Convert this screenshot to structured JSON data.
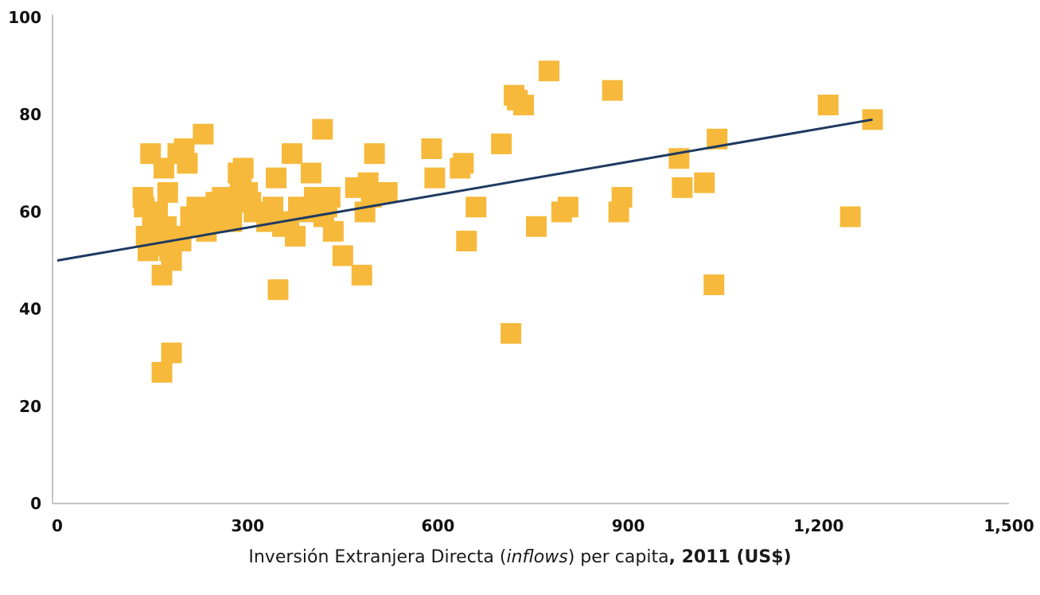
{
  "chart_data": {
    "type": "scatter",
    "title": "",
    "xlabel_parts": {
      "pre": "Inversión Extranjera Directa (",
      "italic": "inflows",
      "mid": ") per capita",
      "bold": ", 2011 (US$)"
    },
    "ylabel": "",
    "xlim": [
      0,
      1500
    ],
    "ylim": [
      0,
      100
    ],
    "x_ticks": [
      0,
      300,
      600,
      900,
      1200,
      1500
    ],
    "x_tick_labels": [
      "0",
      "300",
      "600",
      "900",
      "1,200",
      "1,500"
    ],
    "y_ticks": [
      0,
      20,
      40,
      60,
      80,
      100
    ],
    "y_tick_labels": [
      "0",
      "20",
      "40",
      "60",
      "80",
      "100"
    ],
    "grid": false,
    "legend": "none",
    "marker_color": "#F6B93B",
    "trend_color": "#1F3A60",
    "trendline": {
      "x": [
        0,
        1285
      ],
      "y": [
        50,
        79
      ]
    },
    "points": [
      [
        135,
        63
      ],
      [
        137,
        61
      ],
      [
        140,
        55
      ],
      [
        143,
        52
      ],
      [
        147,
        72
      ],
      [
        150,
        58
      ],
      [
        155,
        54
      ],
      [
        158,
        60
      ],
      [
        162,
        56
      ],
      [
        165,
        47
      ],
      [
        168,
        69
      ],
      [
        170,
        53
      ],
      [
        172,
        57
      ],
      [
        174,
        64
      ],
      [
        177,
        52
      ],
      [
        180,
        50
      ],
      [
        185,
        55
      ],
      [
        190,
        72
      ],
      [
        195,
        54
      ],
      [
        200,
        73
      ],
      [
        205,
        70
      ],
      [
        210,
        59
      ],
      [
        215,
        58
      ],
      [
        220,
        61
      ],
      [
        225,
        57
      ],
      [
        230,
        76
      ],
      [
        235,
        56
      ],
      [
        240,
        60
      ],
      [
        245,
        58
      ],
      [
        250,
        62
      ],
      [
        255,
        61
      ],
      [
        260,
        63
      ],
      [
        265,
        59
      ],
      [
        270,
        60
      ],
      [
        275,
        58
      ],
      [
        280,
        62
      ],
      [
        285,
        68
      ],
      [
        288,
        65
      ],
      [
        290,
        66
      ],
      [
        293,
        69
      ],
      [
        296,
        63
      ],
      [
        300,
        64
      ],
      [
        305,
        62
      ],
      [
        310,
        60
      ],
      [
        330,
        58
      ],
      [
        340,
        61
      ],
      [
        345,
        67
      ],
      [
        348,
        44
      ],
      [
        355,
        57
      ],
      [
        365,
        58
      ],
      [
        370,
        72
      ],
      [
        375,
        55
      ],
      [
        380,
        61
      ],
      [
        390,
        60
      ],
      [
        400,
        68
      ],
      [
        405,
        63
      ],
      [
        410,
        62
      ],
      [
        418,
        77
      ],
      [
        420,
        59
      ],
      [
        425,
        61
      ],
      [
        430,
        63
      ],
      [
        435,
        56
      ],
      [
        450,
        51
      ],
      [
        470,
        65
      ],
      [
        480,
        47
      ],
      [
        485,
        60
      ],
      [
        490,
        66
      ],
      [
        495,
        63
      ],
      [
        500,
        72
      ],
      [
        520,
        64
      ],
      [
        590,
        73
      ],
      [
        595,
        67
      ],
      [
        635,
        69
      ],
      [
        640,
        70
      ],
      [
        645,
        54
      ],
      [
        660,
        61
      ],
      [
        700,
        74
      ],
      [
        715,
        35
      ],
      [
        720,
        84
      ],
      [
        725,
        83
      ],
      [
        735,
        82
      ],
      [
        755,
        57
      ],
      [
        775,
        89
      ],
      [
        795,
        60
      ],
      [
        805,
        61
      ],
      [
        875,
        85
      ],
      [
        885,
        60
      ],
      [
        890,
        63
      ],
      [
        980,
        71
      ],
      [
        985,
        65
      ],
      [
        1020,
        66
      ],
      [
        1035,
        45
      ],
      [
        1040,
        75
      ],
      [
        1215,
        82
      ],
      [
        1250,
        59
      ],
      [
        1285,
        79
      ],
      [
        165,
        27
      ],
      [
        180,
        31
      ]
    ]
  }
}
